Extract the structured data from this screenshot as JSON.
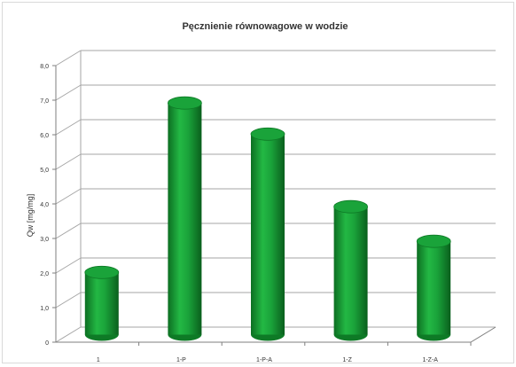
{
  "chart_data": {
    "type": "bar",
    "title": "Pęcznienie równowagowe w wodzie",
    "xlabel": "",
    "ylabel": "Qw [mg/mg]",
    "categories": [
      "1",
      "1-P",
      "1-P-A",
      "1-Z",
      "1-Z-A"
    ],
    "values": [
      1.8,
      6.7,
      5.8,
      3.7,
      2.7
    ],
    "ylim": [
      0,
      8
    ],
    "yticks": [
      "0",
      "1,0",
      "2,0",
      "3,0",
      "4,0",
      "5,0",
      "6,0",
      "7,0",
      "8,0"
    ],
    "grid": true,
    "legend": "none",
    "bar_color": "#1aa33a",
    "bar_shade_color": "#0e7a26",
    "grid_color": "#a6a6a6"
  }
}
